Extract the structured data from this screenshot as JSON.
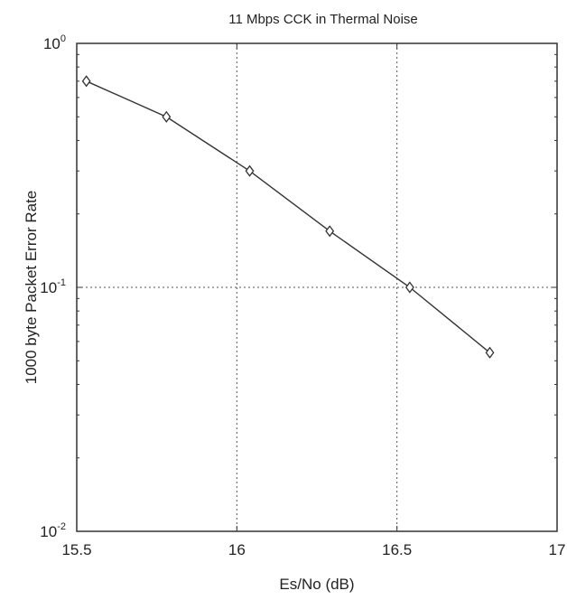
{
  "chart_data": {
    "type": "line",
    "title": "11 Mbps CCK in Thermal Noise",
    "xlabel": "Es/No (dB)",
    "ylabel": "1000 byte Packet Error Rate",
    "xlim": [
      15.5,
      17
    ],
    "ylim": [
      0.01,
      1
    ],
    "yscale": "log",
    "grid": true,
    "x_ticks": [
      "15.5",
      "16",
      "16.5",
      "17"
    ],
    "y_ticks": [
      {
        "base": "10",
        "exp": "0"
      },
      {
        "base": "10",
        "exp": "-1"
      },
      {
        "base": "10",
        "exp": "-2"
      }
    ],
    "series": [
      {
        "marker": "diamond",
        "color": "#333333",
        "x": [
          15.53,
          15.78,
          16.04,
          16.29,
          16.54,
          16.79
        ],
        "y": [
          0.7,
          0.5,
          0.3,
          0.17,
          0.1,
          0.054
        ]
      }
    ]
  }
}
